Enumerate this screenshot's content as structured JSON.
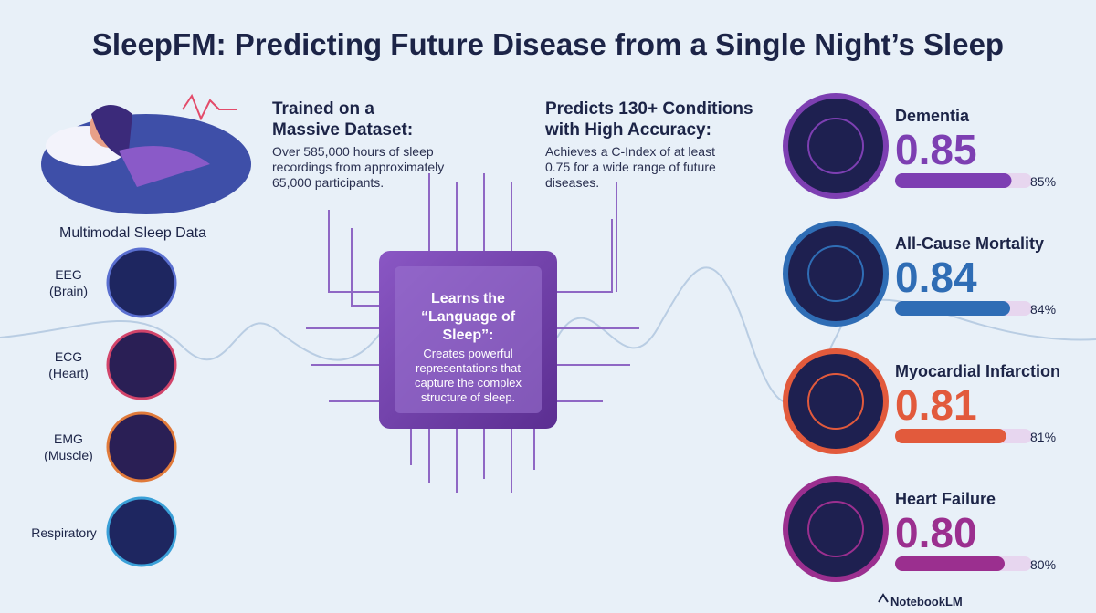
{
  "title": "SleepFM: Predicting Future Disease from a Single Night’s Sleep",
  "modalities": {
    "heading": "Multimodal Sleep Data",
    "items": [
      {
        "label": "EEG",
        "sublabel": "(Brain)"
      },
      {
        "label": "ECG",
        "sublabel": "(Heart)"
      },
      {
        "label": "EMG",
        "sublabel": "(Muscle)"
      },
      {
        "label": "Respiratory"
      }
    ]
  },
  "dataset": {
    "heading": "Trained on a Massive Dataset:",
    "text": "Over 585,000 hours of sleep recordings from approximately 65,000 participants."
  },
  "predicts": {
    "heading": "Predicts 130+ Conditions with High Accuracy:",
    "text": "Achieves a C-Index of at least 0.75 for a wide range of future diseases."
  },
  "chip": {
    "heading": "Learns the “Language of Sleep”:",
    "text": "Creates powerful representations that capture the complex structure of sleep."
  },
  "results": [
    {
      "name": "Dementia",
      "score": 0.85,
      "percent_label": "85%",
      "color": "#7d3fb2"
    },
    {
      "name": "All-Cause Mortality",
      "score": 0.84,
      "percent_label": "84%",
      "color": "#2f6db5"
    },
    {
      "name": "Myocardial Infarction",
      "score": 0.81,
      "percent_label": "81%",
      "color": "#e25a3c"
    },
    {
      "name": "Heart Failure",
      "score": {
        "value": 0.8,
        "label": "0.80"
      },
      "percent_label": "80%",
      "color": "#9b2f8f"
    }
  ],
  "footer": "NotebookLM"
}
